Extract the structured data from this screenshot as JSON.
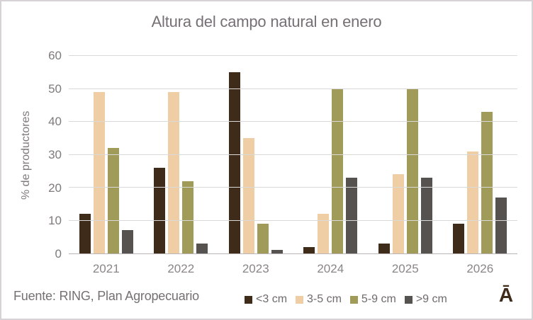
{
  "title": "Altura del campo natural en enero",
  "footer": {
    "source": "Fuente: RING, Plan Agropecuario",
    "logo": "Ā"
  },
  "chart_data": {
    "type": "bar",
    "title": "Altura del campo natural en enero",
    "categories": [
      "2021",
      "2022",
      "2023",
      "2024",
      "2025",
      "2026"
    ],
    "series": [
      {
        "name": "<3 cm",
        "color": "#3f2b1a",
        "values": [
          12,
          26,
          55,
          2,
          3,
          9
        ]
      },
      {
        "name": "3-5 cm",
        "color": "#efcda5",
        "values": [
          49,
          49,
          35,
          12,
          24,
          31
        ]
      },
      {
        "name": "5-9 cm",
        "color": "#a09b59",
        "values": [
          32,
          22,
          9,
          50,
          50,
          43
        ]
      },
      {
        "name": ">9 cm",
        "color": "#555250",
        "values": [
          7,
          3,
          1,
          23,
          23,
          17
        ]
      }
    ],
    "xlabel": "",
    "ylabel": "% de productores",
    "ylim": [
      0,
      60
    ],
    "ytick_step": 10,
    "grid": true,
    "legend_position": "bottom"
  },
  "colors": {
    "title_text": "#767074",
    "axis_text": "#7f7b7c",
    "gridline": "#d9d9d9",
    "axis_line": "#b9b5b6",
    "frame_border": "#d7d2d5",
    "logo": "#3f2b1a"
  }
}
